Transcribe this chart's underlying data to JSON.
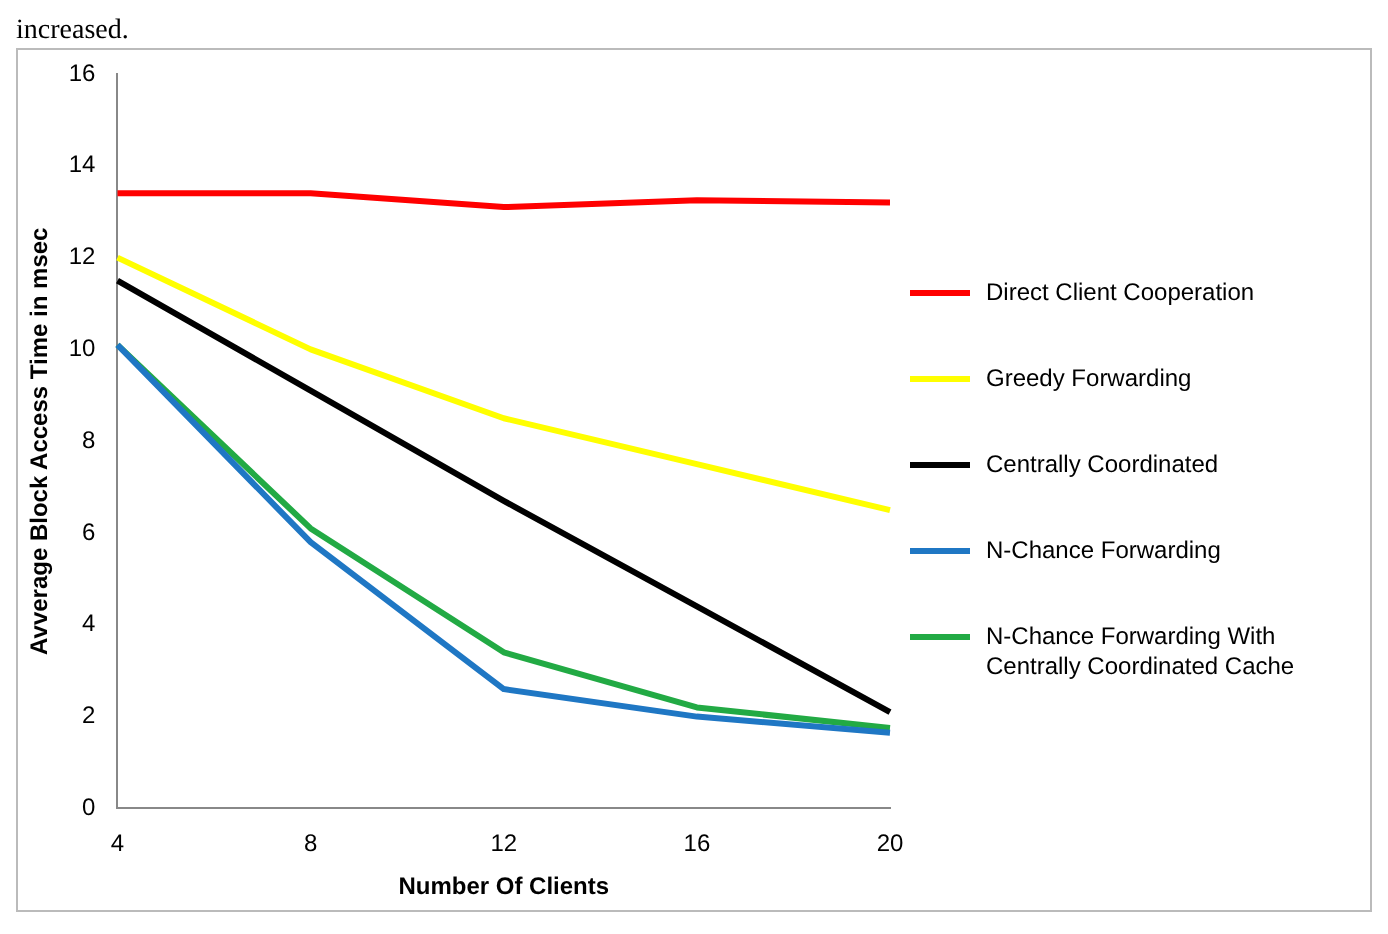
{
  "chart_data": {
    "type": "line",
    "xlabel": "Number Of Clients",
    "ylabel": "Avverage Block Access Time in msec",
    "annotations": [
      "increased."
    ],
    "categories": [
      "4",
      "8",
      "12",
      "16",
      "20"
    ],
    "series": [
      {
        "name": "Direct Client Cooperation",
        "color": "#ff0000",
        "values": [
          13.4,
          13.4,
          13.1,
          13.25,
          13.2
        ]
      },
      {
        "name": "Greedy Forwarding",
        "color": "#ffff00",
        "values": [
          12,
          10,
          8.5,
          7.5,
          6.5
        ]
      },
      {
        "name": "Centrally Coordinated",
        "color": "#000000",
        "values": [
          11.5,
          9.1,
          6.7,
          4.4,
          2.1
        ]
      },
      {
        "name": "N-Chance Forwarding",
        "color": "#1f77c4",
        "values": [
          10.1,
          5.8,
          2.6,
          2.0,
          1.65
        ]
      },
      {
        "name": "N-Chance Forwarding With Centrally Coordinated Cache",
        "color": "#22aa44",
        "values": [
          10.1,
          6.1,
          3.4,
          2.2,
          1.75
        ]
      }
    ],
    "ylim": [
      0,
      16
    ],
    "yticks": [
      0,
      2,
      4,
      6,
      8,
      10,
      12,
      14,
      16
    ],
    "grid": false,
    "legend": "right",
    "marker": "none",
    "line_style": "solid"
  }
}
